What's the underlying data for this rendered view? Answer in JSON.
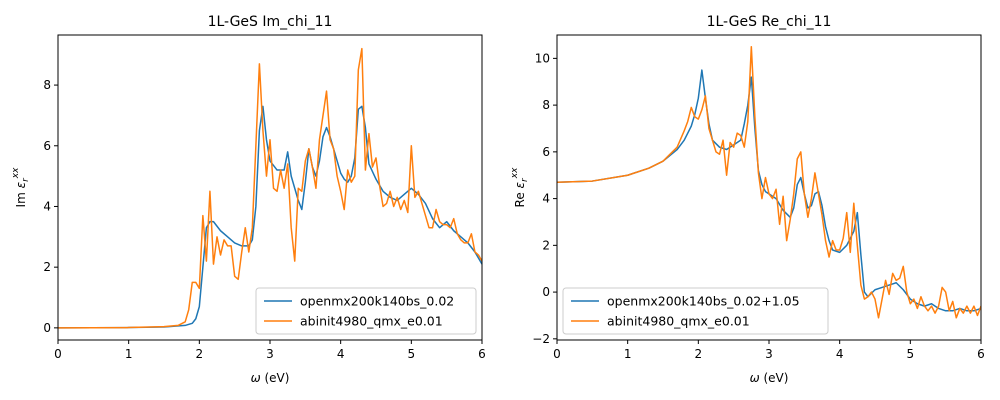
{
  "colors": {
    "series1": "#1f77b4",
    "series2": "#ff7f0e"
  },
  "chart_data": [
    {
      "type": "line",
      "title": "1L-GeS Im_chi_11",
      "xlabel": "ω (eV)",
      "ylabel": "Im ε_r^xx",
      "ylabel_parts": {
        "pre": "Im ",
        "sym": "ε",
        "sub": "r",
        "sup": "xx"
      },
      "xlabel_parts": {
        "sym": "ω",
        "post": " (eV)"
      },
      "xlim": [
        0,
        6
      ],
      "ylim": [
        -0.4,
        9.65
      ],
      "xticks": [
        "0",
        "1",
        "2",
        "3",
        "4",
        "5",
        "6"
      ],
      "yticks": [
        "0",
        "2",
        "4",
        "6",
        "8"
      ],
      "legend_position": "lower-right",
      "series": [
        {
          "name": "openmx200k140bs_0.02",
          "color": "#1f77b4",
          "x": [
            0,
            1,
            1.5,
            1.8,
            1.9,
            1.95,
            2.0,
            2.05,
            2.1,
            2.15,
            2.2,
            2.3,
            2.4,
            2.5,
            2.6,
            2.7,
            2.75,
            2.8,
            2.85,
            2.9,
            2.95,
            3.0,
            3.1,
            3.2,
            3.25,
            3.3,
            3.4,
            3.45,
            3.5,
            3.55,
            3.6,
            3.65,
            3.7,
            3.75,
            3.8,
            3.85,
            3.9,
            4.0,
            4.05,
            4.1,
            4.15,
            4.2,
            4.25,
            4.3,
            4.35,
            4.4,
            4.5,
            4.6,
            4.7,
            4.8,
            4.9,
            5.0,
            5.1,
            5.2,
            5.3,
            5.4,
            5.5,
            5.6,
            5.7,
            5.8,
            5.9,
            6.0
          ],
          "y": [
            0,
            0.01,
            0.03,
            0.08,
            0.15,
            0.3,
            0.7,
            2.0,
            3.3,
            3.5,
            3.5,
            3.2,
            3.0,
            2.8,
            2.7,
            2.7,
            2.9,
            4.0,
            6.5,
            7.3,
            6.2,
            5.5,
            5.2,
            5.2,
            5.8,
            5.0,
            4.2,
            3.9,
            4.8,
            5.9,
            5.3,
            5.0,
            5.5,
            6.3,
            6.6,
            6.3,
            5.9,
            5.1,
            4.9,
            4.8,
            5.0,
            5.6,
            7.2,
            7.3,
            6.6,
            5.4,
            4.9,
            4.5,
            4.3,
            4.2,
            4.4,
            4.6,
            4.4,
            4.1,
            3.6,
            3.3,
            3.5,
            3.2,
            3.0,
            2.8,
            2.5,
            2.1
          ]
        },
        {
          "name": "abinit4980_qmx_e0.01",
          "color": "#ff7f0e",
          "x": [
            0,
            1,
            1.5,
            1.7,
            1.8,
            1.85,
            1.9,
            1.95,
            2.0,
            2.05,
            2.1,
            2.15,
            2.2,
            2.25,
            2.3,
            2.35,
            2.4,
            2.45,
            2.5,
            2.55,
            2.6,
            2.65,
            2.7,
            2.75,
            2.8,
            2.85,
            2.9,
            2.95,
            3.0,
            3.05,
            3.1,
            3.15,
            3.2,
            3.25,
            3.3,
            3.35,
            3.4,
            3.45,
            3.5,
            3.55,
            3.6,
            3.65,
            3.7,
            3.75,
            3.8,
            3.85,
            3.9,
            3.95,
            4.0,
            4.05,
            4.1,
            4.15,
            4.2,
            4.25,
            4.3,
            4.35,
            4.4,
            4.45,
            4.5,
            4.55,
            4.6,
            4.65,
            4.7,
            4.75,
            4.8,
            4.85,
            4.9,
            4.95,
            5.0,
            5.05,
            5.1,
            5.15,
            5.2,
            5.25,
            5.3,
            5.35,
            5.4,
            5.45,
            5.5,
            5.55,
            5.6,
            5.65,
            5.7,
            5.75,
            5.8,
            5.85,
            5.9,
            5.95,
            6.0
          ],
          "y": [
            0,
            0.01,
            0.04,
            0.08,
            0.2,
            0.6,
            1.5,
            1.5,
            1.3,
            3.7,
            2.2,
            4.5,
            2.1,
            3.0,
            2.4,
            2.9,
            2.7,
            2.7,
            1.7,
            1.6,
            2.5,
            3.3,
            2.5,
            3.3,
            6.0,
            8.7,
            6.5,
            5.0,
            6.2,
            4.6,
            4.5,
            5.2,
            4.6,
            5.4,
            3.3,
            2.2,
            4.6,
            4.5,
            5.5,
            5.9,
            5.3,
            4.6,
            6.2,
            7.0,
            7.8,
            6.2,
            5.9,
            5.0,
            4.5,
            3.9,
            5.2,
            4.8,
            5.0,
            8.5,
            9.2,
            5.2,
            6.4,
            5.3,
            5.6,
            4.7,
            4.0,
            4.1,
            4.5,
            4.0,
            4.3,
            3.9,
            4.2,
            3.8,
            6.0,
            4.3,
            4.5,
            4.1,
            3.7,
            3.3,
            3.3,
            3.9,
            3.5,
            3.4,
            3.4,
            3.3,
            3.6,
            3.1,
            2.9,
            2.8,
            2.8,
            3.1,
            2.5,
            2.4,
            2.2
          ]
        }
      ]
    },
    {
      "type": "line",
      "title": "1L-GeS Re_chi_11",
      "xlabel": "ω (eV)",
      "ylabel": "Re ε_r^xx",
      "ylabel_parts": {
        "pre": "Re ",
        "sym": "ε",
        "sub": "r",
        "sup": "xx"
      },
      "xlabel_parts": {
        "sym": "ω",
        "post": " (eV)"
      },
      "xlim": [
        0,
        6
      ],
      "ylim": [
        -2.05,
        11.0
      ],
      "xticks": [
        "0",
        "1",
        "2",
        "3",
        "4",
        "5",
        "6"
      ],
      "yticks": [
        "−2",
        "0",
        "2",
        "4",
        "6",
        "8",
        "10"
      ],
      "legend_position": "lower-left",
      "series": [
        {
          "name": "openmx200k140bs_0.02+1.05",
          "color": "#1f77b4",
          "x": [
            0,
            0.5,
            1.0,
            1.3,
            1.5,
            1.7,
            1.8,
            1.9,
            1.95,
            2.0,
            2.05,
            2.1,
            2.15,
            2.2,
            2.3,
            2.4,
            2.5,
            2.6,
            2.65,
            2.7,
            2.75,
            2.8,
            2.85,
            2.9,
            2.95,
            3.0,
            3.1,
            3.2,
            3.3,
            3.35,
            3.4,
            3.45,
            3.5,
            3.55,
            3.6,
            3.65,
            3.7,
            3.75,
            3.8,
            3.85,
            3.9,
            4.0,
            4.1,
            4.2,
            4.25,
            4.3,
            4.35,
            4.4,
            4.5,
            4.6,
            4.7,
            4.8,
            4.9,
            5.0,
            5.1,
            5.2,
            5.3,
            5.4,
            5.5,
            5.6,
            5.7,
            5.8,
            5.9,
            6.0
          ],
          "y": [
            4.7,
            4.75,
            5.0,
            5.3,
            5.6,
            6.1,
            6.5,
            7.1,
            7.6,
            8.3,
            9.5,
            8.3,
            7.2,
            6.5,
            6.2,
            6.1,
            6.3,
            6.5,
            7.2,
            8.0,
            9.2,
            7.0,
            5.2,
            4.6,
            4.3,
            4.2,
            4.0,
            3.5,
            3.2,
            3.6,
            4.6,
            4.9,
            4.2,
            3.6,
            3.7,
            4.2,
            4.3,
            3.7,
            2.8,
            2.2,
            1.8,
            1.7,
            2.0,
            2.6,
            3.4,
            1.6,
            0.0,
            -0.2,
            0.1,
            0.2,
            0.3,
            0.4,
            0.1,
            -0.3,
            -0.5,
            -0.6,
            -0.5,
            -0.7,
            -0.8,
            -0.8,
            -0.7,
            -0.8,
            -0.8,
            -0.7
          ]
        },
        {
          "name": "abinit4980_qmx_e0.01",
          "color": "#ff7f0e",
          "x": [
            0,
            0.5,
            1.0,
            1.3,
            1.5,
            1.7,
            1.8,
            1.85,
            1.9,
            1.95,
            2.0,
            2.05,
            2.1,
            2.15,
            2.2,
            2.25,
            2.3,
            2.35,
            2.4,
            2.45,
            2.5,
            2.55,
            2.6,
            2.65,
            2.7,
            2.75,
            2.8,
            2.85,
            2.9,
            2.95,
            3.0,
            3.05,
            3.1,
            3.15,
            3.2,
            3.25,
            3.3,
            3.35,
            3.4,
            3.45,
            3.5,
            3.55,
            3.6,
            3.65,
            3.7,
            3.75,
            3.8,
            3.85,
            3.9,
            3.95,
            4.0,
            4.05,
            4.1,
            4.15,
            4.2,
            4.25,
            4.3,
            4.35,
            4.4,
            4.45,
            4.5,
            4.55,
            4.6,
            4.65,
            4.7,
            4.75,
            4.8,
            4.85,
            4.9,
            4.95,
            5.0,
            5.05,
            5.1,
            5.15,
            5.2,
            5.25,
            5.3,
            5.35,
            5.4,
            5.45,
            5.5,
            5.55,
            5.6,
            5.65,
            5.7,
            5.75,
            5.8,
            5.85,
            5.9,
            5.95,
            6.0
          ],
          "y": [
            4.7,
            4.75,
            5.0,
            5.3,
            5.6,
            6.2,
            6.9,
            7.3,
            7.9,
            7.5,
            7.4,
            7.8,
            8.4,
            7.0,
            6.5,
            6.0,
            5.9,
            6.5,
            5.0,
            6.4,
            6.2,
            6.8,
            6.7,
            6.2,
            7.3,
            10.5,
            7.5,
            5.1,
            4.0,
            4.9,
            4.2,
            4.0,
            4.4,
            2.9,
            4.1,
            2.2,
            3.1,
            4.2,
            5.7,
            6.0,
            4.2,
            3.2,
            4.0,
            5.1,
            4.2,
            3.3,
            2.2,
            1.5,
            2.2,
            1.8,
            1.8,
            2.3,
            3.4,
            1.7,
            3.8,
            2.0,
            0.3,
            -0.3,
            -0.2,
            0.0,
            -0.3,
            -1.1,
            -0.3,
            0.5,
            -0.1,
            0.8,
            0.5,
            0.6,
            1.1,
            0.0,
            -0.5,
            -0.3,
            -0.7,
            -0.2,
            -0.6,
            -0.8,
            -0.6,
            -0.9,
            -0.6,
            0.2,
            0.0,
            -0.8,
            -0.4,
            -1.1,
            -0.7,
            -0.9,
            -0.6,
            -0.9,
            -0.6,
            -1.0,
            -0.6
          ]
        }
      ]
    }
  ]
}
